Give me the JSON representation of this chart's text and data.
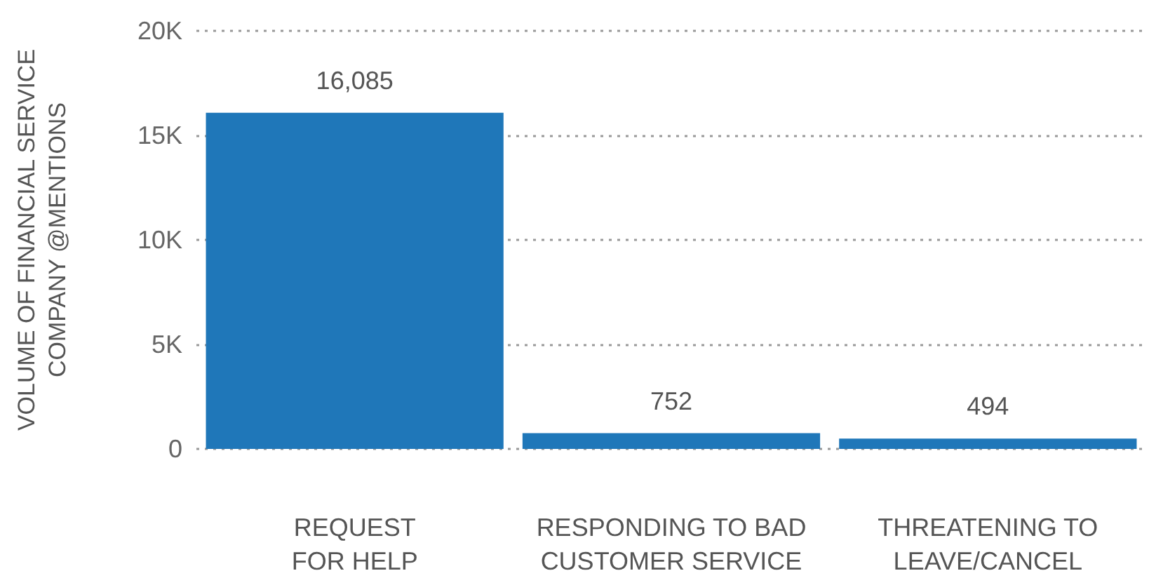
{
  "chart_data": {
    "type": "bar",
    "ylabel": "VOLUME OF FINANCIAL SERVICE\nCOMPANY @MENTIONS",
    "categories": [
      "REQUEST\nFOR HELP",
      "RESPONDING TO BAD\nCUSTOMER SERVICE",
      "THREATENING TO\nLEAVE/CANCEL"
    ],
    "values": [
      16085,
      752,
      494
    ],
    "value_labels": [
      "16,085",
      "752",
      "494"
    ],
    "color": "#1f77b9",
    "ylim": [
      0,
      20000
    ],
    "yticks": [
      {
        "value": 0,
        "label": "0"
      },
      {
        "value": 5000,
        "label": "5K"
      },
      {
        "value": 10000,
        "label": "10K"
      },
      {
        "value": 15000,
        "label": "15K"
      },
      {
        "value": 20000,
        "label": "20K"
      }
    ],
    "grid": "y"
  }
}
